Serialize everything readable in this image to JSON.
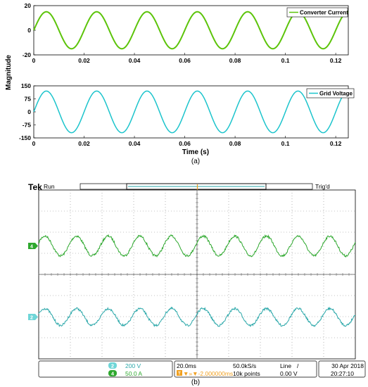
{
  "chart_data": [
    {
      "type": "line",
      "series": [
        {
          "name": "Converter Current",
          "amplitude": 15,
          "frequency_hz": 50,
          "color": "#5cc40a"
        }
      ],
      "x_start": 0,
      "x_end": 0.125,
      "ylim": [
        -20,
        20
      ],
      "xticks": [
        "0",
        "0.02",
        "0.04",
        "0.06",
        "0.08",
        "0.1",
        "0.12"
      ],
      "yticks": [
        "20",
        "0",
        "-20"
      ]
    },
    {
      "type": "line",
      "series": [
        {
          "name": "Grid Voltage",
          "amplitude": 120,
          "frequency_hz": 50,
          "color": "#1cc4cc"
        }
      ],
      "x_start": 0,
      "x_end": 0.125,
      "ylim": [
        -150,
        150
      ],
      "xticks": [
        "0",
        "0.02",
        "0.04",
        "0.06",
        "0.08",
        "0.1",
        "0.12"
      ],
      "yticks": [
        "150",
        "75",
        "0",
        "-75",
        "-150"
      ],
      "xlabel": "Time (s)"
    }
  ],
  "figure": {
    "ylabel": "Magnitude",
    "caption_a": "(a)",
    "caption_b": "(b)"
  },
  "scope": {
    "brand": "Tek",
    "status": "Run",
    "trig_status": "Trig'd",
    "trigger_marker": "T",
    "ch4_marker": "4",
    "ch2_marker": "2",
    "ch2_badge": "2",
    "ch2_scale": "200 V",
    "ch4_badge": "4",
    "ch4_scale": "50.0 A",
    "timebase": "20.0ms",
    "sample_rate": "50.0kS/s",
    "trigger_source": "Line",
    "trigger_slope": "/",
    "trigger_offset": "▼»▼-2.000000ms",
    "trigger_icon": "T",
    "record_length": "10k points",
    "trigger_level": "0.00 V",
    "date": "30 Apr 2018",
    "time": "20:27:10",
    "ch4_color": "#2ea82e",
    "ch2_color": "#2aa7a9",
    "trigger_color": "#f0a020"
  }
}
